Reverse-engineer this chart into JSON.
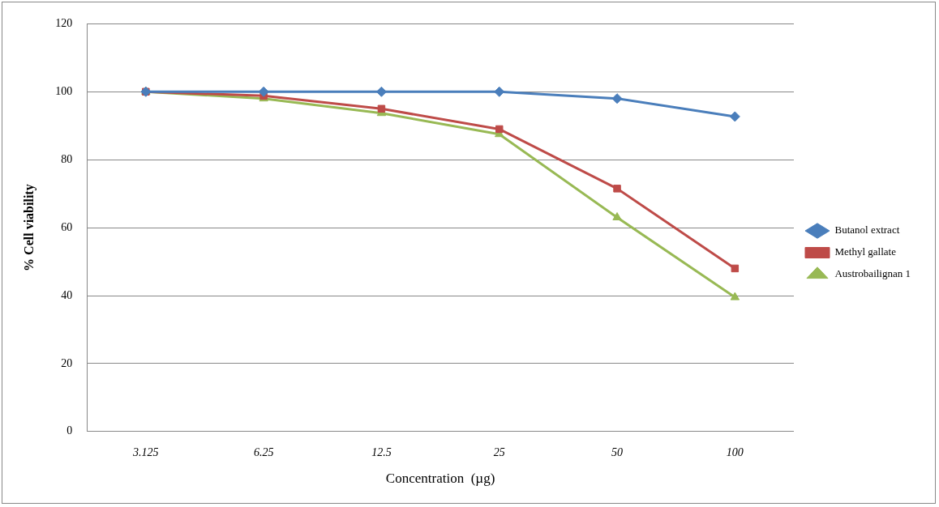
{
  "chart_data": {
    "type": "line",
    "xlabel": "Concentration  (µg)",
    "ylabel": "% Cell viability",
    "categories": [
      "3.125",
      "6.25",
      "12.5",
      "25",
      "50",
      "100"
    ],
    "series": [
      {
        "name": "Butanol extract",
        "color": "#4a7ebb",
        "marker": "diamond",
        "values": [
          100,
          100,
          100,
          100,
          98,
          92.7
        ]
      },
      {
        "name": "Methyl gallate",
        "color": "#be4b48",
        "marker": "square",
        "values": [
          100,
          98.8,
          95,
          89,
          71.5,
          48
        ]
      },
      {
        "name": "Austrobailignan 1",
        "color": "#98b954",
        "marker": "triangle",
        "values": [
          100,
          98,
          93.7,
          87.5,
          63,
          39.5
        ]
      }
    ],
    "ylim": [
      0,
      120
    ],
    "yticks": [
      0,
      20,
      40,
      60,
      80,
      100,
      120
    ],
    "grid": "y",
    "legend": "right",
    "line_style": "solid"
  }
}
